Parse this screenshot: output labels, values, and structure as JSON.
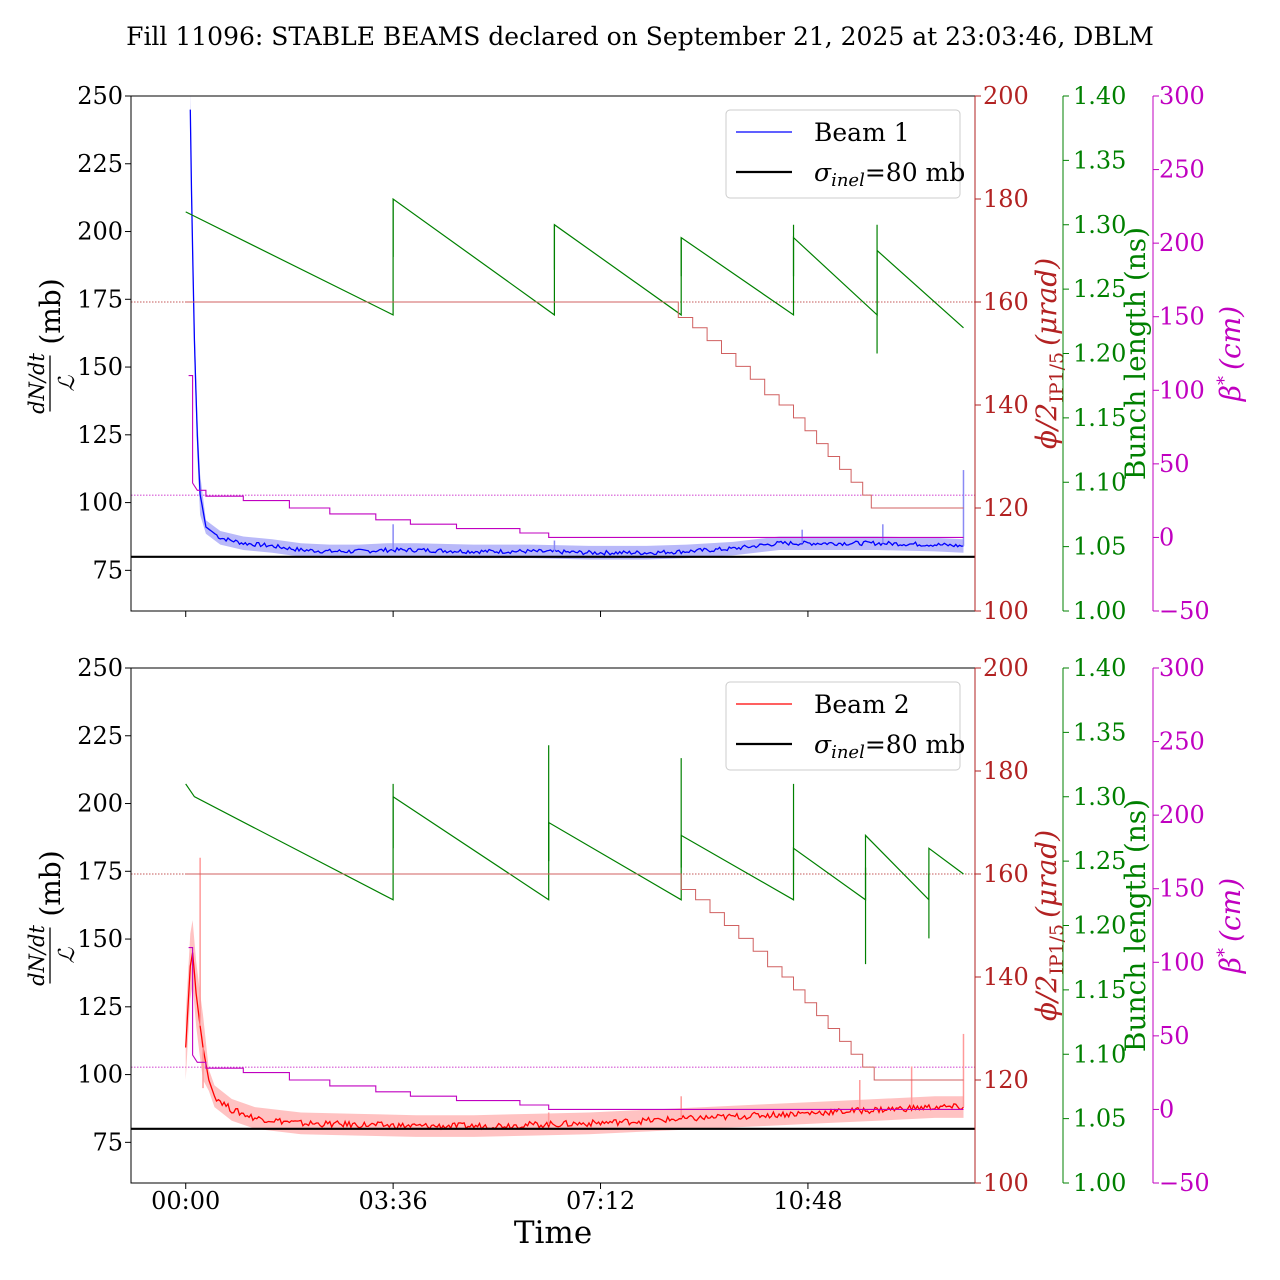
{
  "title": "Fill 11096: STABLE BEAMS declared on September 21, 2025 at 23:03:46, DBLM",
  "xlabel": "Time",
  "colors": {
    "beam1": "#0000ff",
    "beam1_band": "#8a8af5",
    "beam2": "#ff0000",
    "beam2_band": "#ff9a9a",
    "sigma": "#000000",
    "bunch": "#008000",
    "angle": "#b22222",
    "beta": "#c000c0"
  },
  "chart_data": [
    {
      "type": "line",
      "legend": {
        "placement": "top-right",
        "beam_label": "Beam 1",
        "sigma_label": "σ",
        "sigma_sub": "inel",
        "sigma_value": "=80 mb"
      },
      "x_ticks": [
        "00:00",
        "03:36",
        "07:12",
        "10:48"
      ],
      "x_range_hours": [
        -0.95,
        13.7
      ],
      "axes": {
        "left": {
          "label": "dN/dt / L (mb)",
          "label_num": "dN/dt",
          "label_den": "ℒ",
          "label_unit": "(mb)",
          "ylim": [
            60,
            250
          ],
          "ticks": [
            "75",
            "100",
            "125",
            "150",
            "175",
            "200",
            "225",
            "250"
          ]
        },
        "angle": {
          "label_main": "ϕ/2",
          "label_sub": "IP1/5",
          "label_unit": "(μrad)",
          "ylim": [
            100,
            200
          ],
          "ticks": [
            "100",
            "120",
            "140",
            "160",
            "180",
            "200"
          ]
        },
        "bunch": {
          "label": "Bunch length (ns)",
          "ylim": [
            1.0,
            1.4
          ],
          "ticks": [
            "1.00",
            "1.05",
            "1.10",
            "1.15",
            "1.20",
            "1.25",
            "1.30",
            "1.35",
            "1.40"
          ]
        },
        "beta": {
          "label_main": "β",
          "label_sup": "*",
          "label_unit": "(cm)",
          "ylim": [
            -50,
            300
          ],
          "ticks": [
            "−50",
            "0",
            "50",
            "100",
            "150",
            "200",
            "250",
            "300"
          ]
        }
      },
      "sigma_inel_mb": 80,
      "beam_series": {
        "name": "Beam 1",
        "points": [
          [
            0.08,
            245
          ],
          [
            0.1,
            215
          ],
          [
            0.15,
            160
          ],
          [
            0.2,
            125
          ],
          [
            0.25,
            103
          ],
          [
            0.35,
            91
          ],
          [
            0.6,
            87
          ],
          [
            1.0,
            85
          ],
          [
            1.5,
            84
          ],
          [
            2.0,
            82.5
          ],
          [
            2.5,
            82
          ],
          [
            3.0,
            82
          ],
          [
            3.5,
            82.5
          ],
          [
            4.0,
            82.5
          ],
          [
            5.0,
            82
          ],
          [
            6.0,
            82
          ],
          [
            7.0,
            81.5
          ],
          [
            8.0,
            81.5
          ],
          [
            8.7,
            82
          ],
          [
            9.5,
            83
          ],
          [
            10.3,
            85
          ],
          [
            11.0,
            85
          ],
          [
            12.0,
            85
          ],
          [
            13.0,
            84.5
          ],
          [
            13.5,
            84
          ]
        ],
        "band": 2.5,
        "spikes": [
          [
            3.6,
            92
          ],
          [
            6.4,
            86
          ],
          [
            10.7,
            90
          ],
          [
            12.1,
            92
          ],
          [
            13.5,
            112
          ]
        ]
      },
      "bunch_series": [
        [
          0.0,
          1.31
        ],
        [
          3.6,
          1.23
        ],
        [
          3.6,
          1.32
        ],
        [
          6.4,
          1.23
        ],
        [
          6.4,
          1.3
        ],
        [
          8.6,
          1.23
        ],
        [
          8.6,
          1.29
        ],
        [
          10.55,
          1.23
        ],
        [
          10.55,
          1.29
        ],
        [
          12.0,
          1.23
        ],
        [
          12.0,
          1.28
        ],
        [
          13.5,
          1.22
        ]
      ],
      "bunch_spikes": [
        [
          3.6,
          1.32
        ],
        [
          6.4,
          1.3
        ],
        [
          8.6,
          1.29
        ],
        [
          10.55,
          1.3
        ],
        [
          12.0,
          1.3
        ],
        [
          12.0,
          1.2
        ]
      ],
      "angle_series": [
        [
          0.0,
          160
        ],
        [
          8.55,
          160
        ],
        [
          8.55,
          157
        ],
        [
          8.8,
          155
        ],
        [
          9.05,
          152.5
        ],
        [
          9.3,
          150
        ],
        [
          9.55,
          147.5
        ],
        [
          9.8,
          145
        ],
        [
          10.05,
          142
        ],
        [
          10.3,
          140
        ],
        [
          10.55,
          137.5
        ],
        [
          10.75,
          135
        ],
        [
          10.95,
          132.5
        ],
        [
          11.15,
          130
        ],
        [
          11.35,
          127.5
        ],
        [
          11.55,
          125
        ],
        [
          11.75,
          122.5
        ],
        [
          11.9,
          120
        ],
        [
          13.5,
          120
        ]
      ],
      "angle_reference": [
        160,
        122.5
      ],
      "beta_steps": [
        [
          0.05,
          110
        ],
        [
          0.12,
          110
        ],
        [
          0.12,
          37
        ],
        [
          0.2,
          32
        ],
        [
          0.35,
          32
        ],
        [
          0.35,
          28
        ],
        [
          1.0,
          28
        ],
        [
          1.0,
          25
        ],
        [
          1.8,
          25
        ],
        [
          1.8,
          20
        ],
        [
          2.5,
          20
        ],
        [
          2.5,
          16
        ],
        [
          3.3,
          16
        ],
        [
          3.3,
          12
        ],
        [
          3.9,
          12
        ],
        [
          3.9,
          9
        ],
        [
          4.7,
          9
        ],
        [
          4.7,
          6
        ],
        [
          5.8,
          6
        ],
        [
          5.8,
          3
        ],
        [
          6.3,
          3
        ],
        [
          6.3,
          0
        ],
        [
          13.5,
          0
        ]
      ]
    },
    {
      "type": "line",
      "legend": {
        "placement": "top-right",
        "beam_label": "Beam 2",
        "sigma_label": "σ",
        "sigma_sub": "inel",
        "sigma_value": "=80 mb"
      },
      "x_ticks": [
        "00:00",
        "03:36",
        "07:12",
        "10:48"
      ],
      "x_range_hours": [
        -0.95,
        13.7
      ],
      "axes": {
        "left": {
          "label": "dN/dt / L (mb)",
          "label_num": "dN/dt",
          "label_den": "ℒ",
          "label_unit": "(mb)",
          "ylim": [
            60,
            250
          ],
          "ticks": [
            "75",
            "100",
            "125",
            "150",
            "175",
            "200",
            "225",
            "250"
          ]
        },
        "angle": {
          "label_main": "ϕ/2",
          "label_sub": "IP1/5",
          "label_unit": "(μrad)",
          "ylim": [
            100,
            200
          ],
          "ticks": [
            "100",
            "120",
            "140",
            "160",
            "180",
            "200"
          ]
        },
        "bunch": {
          "label": "Bunch length (ns)",
          "ylim": [
            1.0,
            1.4
          ],
          "ticks": [
            "1.00",
            "1.05",
            "1.10",
            "1.15",
            "1.20",
            "1.25",
            "1.30",
            "1.35",
            "1.40"
          ]
        },
        "beta": {
          "label_main": "β",
          "label_sup": "*",
          "label_unit": "(cm)",
          "ylim": [
            -50,
            300
          ],
          "ticks": [
            "−50",
            "0",
            "50",
            "100",
            "150",
            "200",
            "250",
            "300"
          ]
        }
      },
      "sigma_inel_mb": 80,
      "beam_series": {
        "name": "Beam 2",
        "points": [
          [
            0.0,
            110
          ],
          [
            0.08,
            140
          ],
          [
            0.12,
            145
          ],
          [
            0.18,
            130
          ],
          [
            0.25,
            118
          ],
          [
            0.3,
            110
          ],
          [
            0.4,
            98
          ],
          [
            0.5,
            92
          ],
          [
            0.8,
            87
          ],
          [
            1.2,
            84
          ],
          [
            2.0,
            82
          ],
          [
            3.0,
            81.5
          ],
          [
            4.0,
            81
          ],
          [
            5.0,
            81
          ],
          [
            6.0,
            81.5
          ],
          [
            7.0,
            82
          ],
          [
            8.0,
            83
          ],
          [
            9.0,
            84
          ],
          [
            10.0,
            85
          ],
          [
            11.0,
            86
          ],
          [
            12.0,
            87
          ],
          [
            13.0,
            88
          ],
          [
            13.5,
            88
          ]
        ],
        "band": 4,
        "spikes": [
          [
            0.25,
            180
          ],
          [
            0.3,
            95
          ],
          [
            6.3,
            86
          ],
          [
            8.6,
            92
          ],
          [
            11.7,
            98
          ],
          [
            12.6,
            103
          ],
          [
            13.5,
            115
          ]
        ]
      },
      "bunch_series": [
        [
          0.0,
          1.31
        ],
        [
          0.15,
          1.3
        ],
        [
          3.6,
          1.22
        ],
        [
          3.6,
          1.3
        ],
        [
          6.3,
          1.22
        ],
        [
          6.3,
          1.28
        ],
        [
          8.6,
          1.22
        ],
        [
          8.6,
          1.27
        ],
        [
          10.55,
          1.22
        ],
        [
          10.55,
          1.26
        ],
        [
          11.8,
          1.22
        ],
        [
          11.8,
          1.27
        ],
        [
          12.9,
          1.22
        ],
        [
          12.9,
          1.26
        ],
        [
          13.5,
          1.24
        ]
      ],
      "bunch_spikes": [
        [
          3.6,
          1.31
        ],
        [
          6.3,
          1.34
        ],
        [
          6.3,
          1.28
        ],
        [
          8.6,
          1.33
        ],
        [
          10.55,
          1.31
        ],
        [
          11.8,
          1.17
        ],
        [
          12.9,
          1.19
        ]
      ],
      "angle_series": [
        [
          0.0,
          160
        ],
        [
          8.6,
          160
        ],
        [
          8.6,
          157
        ],
        [
          8.85,
          155
        ],
        [
          9.1,
          152.5
        ],
        [
          9.35,
          150
        ],
        [
          9.6,
          147.5
        ],
        [
          9.85,
          145
        ],
        [
          10.1,
          142
        ],
        [
          10.35,
          140
        ],
        [
          10.55,
          137.5
        ],
        [
          10.75,
          135
        ],
        [
          10.95,
          132.5
        ],
        [
          11.15,
          130
        ],
        [
          11.35,
          127.5
        ],
        [
          11.55,
          125
        ],
        [
          11.75,
          122.5
        ],
        [
          11.95,
          120
        ],
        [
          13.5,
          120
        ]
      ],
      "angle_reference": [
        160,
        122.5
      ],
      "beta_steps": [
        [
          0.05,
          110
        ],
        [
          0.12,
          110
        ],
        [
          0.12,
          37
        ],
        [
          0.2,
          32
        ],
        [
          0.35,
          32
        ],
        [
          0.35,
          28
        ],
        [
          1.0,
          28
        ],
        [
          1.0,
          25
        ],
        [
          1.8,
          25
        ],
        [
          1.8,
          20
        ],
        [
          2.5,
          20
        ],
        [
          2.5,
          16
        ],
        [
          3.3,
          16
        ],
        [
          3.3,
          12
        ],
        [
          3.9,
          12
        ],
        [
          3.9,
          9
        ],
        [
          4.7,
          9
        ],
        [
          4.7,
          6
        ],
        [
          5.8,
          6
        ],
        [
          5.8,
          3
        ],
        [
          6.3,
          3
        ],
        [
          6.3,
          0
        ],
        [
          13.5,
          0
        ]
      ]
    }
  ]
}
